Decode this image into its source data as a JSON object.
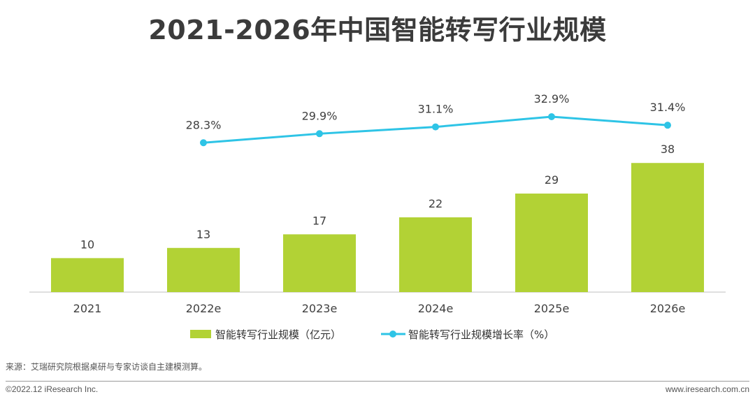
{
  "title": "2021-2026年中国智能转写行业规模",
  "chart_data": {
    "type": "bar",
    "categories": [
      "2021",
      "2022e",
      "2023e",
      "2024e",
      "2025e",
      "2026e"
    ],
    "series": [
      {
        "name": "智能转写行业规模（亿元）",
        "type": "bar",
        "axis": "left",
        "color": "#b2d235",
        "values": [
          10,
          13,
          17,
          22,
          29,
          38
        ],
        "labels": [
          "10",
          "13",
          "17",
          "22",
          "29",
          "38"
        ]
      },
      {
        "name": "智能转写行业规模增长率（%）",
        "type": "line",
        "axis": "right",
        "color": "#2ec4e6",
        "values": [
          null,
          28.3,
          29.9,
          31.1,
          32.9,
          31.4
        ],
        "labels": [
          "",
          "28.3%",
          "29.9%",
          "31.1%",
          "32.9%",
          "31.4%"
        ]
      }
    ],
    "ylim": [
      0,
      40
    ],
    "y2lim": [
      0,
      34
    ],
    "grid": false,
    "legend_position": "bottom"
  },
  "source": "来源：艾瑞研究院根据桌研与专家访谈自主建模测算。",
  "copyright": "©2022.12 iResearch Inc.",
  "website": "www.iresearch.com.cn"
}
